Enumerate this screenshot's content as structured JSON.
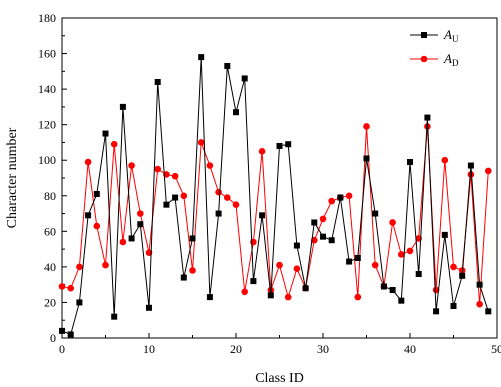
{
  "chart_data": {
    "type": "line",
    "title": "",
    "xlabel": "Class ID",
    "ylabel": "Character number",
    "xlim": [
      0,
      50
    ],
    "ylim": [
      0,
      180
    ],
    "xticks": [
      0,
      10,
      20,
      30,
      40,
      50
    ],
    "yticks": [
      0,
      20,
      40,
      60,
      80,
      100,
      120,
      140,
      160,
      180
    ],
    "grid": false,
    "legend_position": "top-right",
    "x": [
      0,
      1,
      2,
      3,
      4,
      5,
      6,
      7,
      8,
      9,
      10,
      11,
      12,
      13,
      14,
      15,
      16,
      17,
      18,
      19,
      20,
      21,
      22,
      23,
      24,
      25,
      26,
      27,
      28,
      29,
      30,
      31,
      32,
      33,
      34,
      35,
      36,
      37,
      38,
      39,
      40,
      41,
      42,
      43,
      44,
      45,
      46,
      47,
      48,
      49
    ],
    "series": [
      {
        "name": "A",
        "name_sub": "U",
        "color": "#000000",
        "marker": "square",
        "values": [
          4,
          2,
          20,
          69,
          81,
          115,
          12,
          130,
          56,
          64,
          17,
          144,
          75,
          79,
          34,
          56,
          158,
          23,
          70,
          153,
          127,
          146,
          32,
          69,
          24,
          108,
          109,
          52,
          28,
          65,
          57,
          55,
          79,
          43,
          45,
          101,
          70,
          29,
          27,
          21,
          99,
          36,
          124,
          15,
          58,
          18,
          35,
          97,
          30,
          15
        ]
      },
      {
        "name": "A",
        "name_sub": "D",
        "color": "#ff0000",
        "marker": "circle",
        "values": [
          29,
          28,
          40,
          99,
          63,
          41,
          109,
          54,
          97,
          70,
          48,
          95,
          92,
          91,
          80,
          38,
          110,
          97,
          82,
          79,
          75,
          26,
          54,
          105,
          27,
          41,
          23,
          39,
          28,
          55,
          67,
          77,
          79,
          80,
          23,
          119,
          41,
          29,
          65,
          47,
          49,
          56,
          119,
          27,
          100,
          40,
          38,
          92,
          19,
          94
        ]
      }
    ]
  }
}
